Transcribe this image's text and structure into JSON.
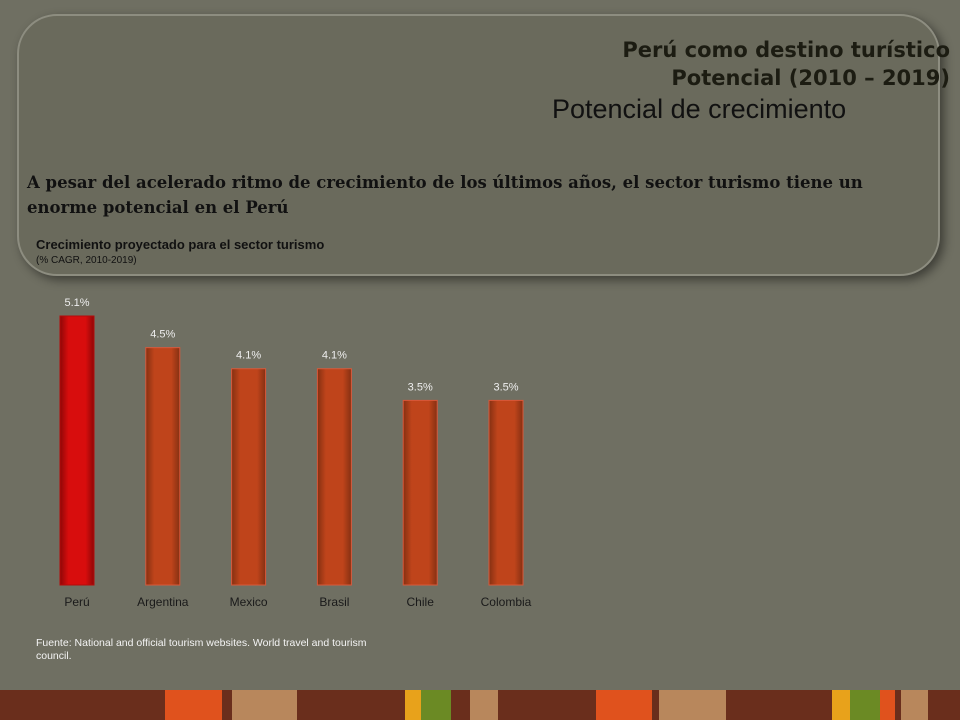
{
  "header": {
    "title_line1": "Perú como destino turístico",
    "title_line2": "Potencial (2010 – 2019)",
    "subtitle": "Potencial de crecimiento",
    "lead_text": "A pesar del acelerado ritmo de crecimiento de los últimos años, el sector turismo tiene un enorme potencial en el Perú"
  },
  "chart_data": {
    "type": "bar",
    "title": "Crecimiento proyectado para el sector turismo",
    "subtitle": "(% CAGR, 2010-2019)",
    "categories": [
      "Perú",
      "Argentina",
      "Mexico",
      "Brasil",
      "Chile",
      "Colombia"
    ],
    "values": [
      5.1,
      4.5,
      4.1,
      4.1,
      3.5,
      3.5
    ],
    "data_labels": [
      "5.1%",
      "4.5%",
      "4.1%",
      "4.1%",
      "3.5%",
      "3.5%"
    ],
    "highlight_color": "#d10d0d",
    "bar_color": "#b8401a",
    "ylim": [
      0,
      5.1
    ],
    "grid": false,
    "legend": "none"
  },
  "source": "Fuente: National and official tourism websites. World travel and tourism council.",
  "colors": {
    "background": "#6f6f62",
    "footer": [
      "#6a2e1c",
      "#e0521d",
      "#b8875c",
      "#e8a21b",
      "#6b8a24"
    ]
  }
}
